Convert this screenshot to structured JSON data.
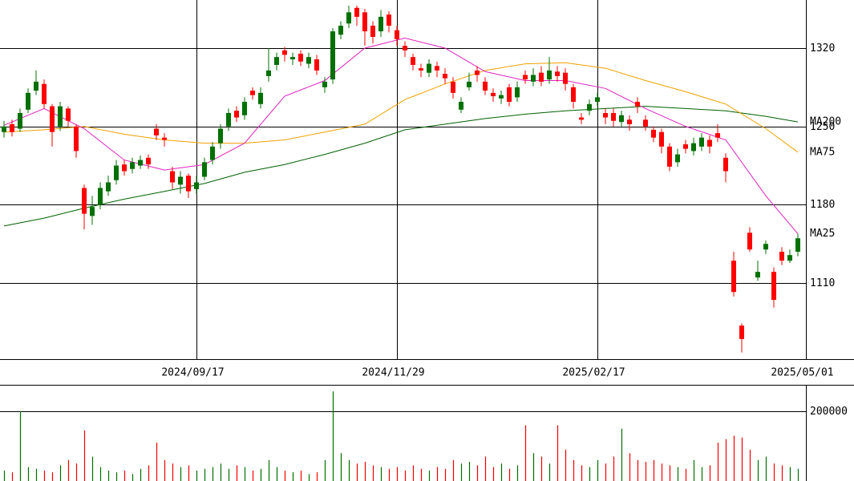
{
  "chart_data": [
    {
      "type": "candlestick",
      "x": [
        0,
        1,
        2,
        3,
        4,
        5,
        6,
        7,
        8,
        9,
        10,
        11,
        12,
        13,
        14,
        15,
        16,
        17,
        18,
        19,
        20,
        21,
        22,
        23,
        24,
        25,
        26,
        27,
        28,
        29,
        30,
        31,
        32,
        33,
        34,
        35,
        36,
        37,
        38,
        39,
        40,
        41,
        42,
        43,
        44,
        45,
        46,
        47,
        48,
        49,
        50,
        51,
        52,
        53,
        54,
        55,
        56,
        57,
        58,
        59,
        60,
        61,
        62,
        63,
        64,
        65,
        66,
        67,
        68,
        69,
        70,
        71,
        72,
        73,
        74,
        75,
        76,
        77,
        78,
        79,
        80,
        81,
        82,
        83,
        84,
        85,
        86,
        87,
        88,
        89,
        90,
        91,
        92,
        93,
        94,
        95,
        96,
        97,
        98,
        99
      ],
      "open": [
        1245,
        1252,
        1248,
        1265,
        1282,
        1288,
        1268,
        1250,
        1266,
        1250,
        1195,
        1170,
        1180,
        1192,
        1202,
        1216,
        1212,
        1215,
        1222,
        1248,
        1240,
        1210,
        1198,
        1206,
        1194,
        1205,
        1220,
        1235,
        1250,
        1264,
        1260,
        1282,
        1270,
        1295,
        1305,
        1318,
        1310,
        1315,
        1306,
        1310,
        1285,
        1292,
        1332,
        1342,
        1356,
        1352,
        1340,
        1335,
        1350,
        1336,
        1322,
        1312,
        1302,
        1298,
        1304,
        1297,
        1290,
        1265,
        1285,
        1300,
        1290,
        1280,
        1275,
        1285,
        1276,
        1296,
        1290,
        1298,
        1292,
        1299,
        1298,
        1285,
        1258,
        1264,
        1272,
        1262,
        1262,
        1254,
        1256,
        1272,
        1256,
        1247,
        1245,
        1232,
        1218,
        1234,
        1228,
        1232,
        1238,
        1244,
        1222,
        1130,
        1072,
        1155,
        1115,
        1140,
        1120,
        1138,
        1130,
        1138
      ],
      "high": [
        1255,
        1256,
        1266,
        1284,
        1300,
        1292,
        1270,
        1272,
        1268,
        1252,
        1198,
        1188,
        1200,
        1206,
        1220,
        1220,
        1222,
        1224,
        1225,
        1252,
        1244,
        1214,
        1210,
        1208,
        1206,
        1222,
        1236,
        1252,
        1266,
        1268,
        1276,
        1285,
        1285,
        1320,
        1316,
        1321,
        1316,
        1318,
        1316,
        1314,
        1294,
        1338,
        1344,
        1358,
        1358,
        1355,
        1344,
        1354,
        1353,
        1340,
        1326,
        1315,
        1306,
        1310,
        1308,
        1302,
        1294,
        1276,
        1298,
        1304,
        1294,
        1284,
        1282,
        1288,
        1290,
        1300,
        1302,
        1304,
        1312,
        1304,
        1302,
        1288,
        1262,
        1274,
        1280,
        1266,
        1266,
        1264,
        1260,
        1276,
        1260,
        1250,
        1248,
        1235,
        1230,
        1238,
        1240,
        1244,
        1242,
        1252,
        1226,
        1138,
        1074,
        1160,
        1130,
        1148,
        1124,
        1142,
        1140,
        1154
      ],
      "low": [
        1240,
        1241,
        1245,
        1262,
        1278,
        1266,
        1232,
        1246,
        1250,
        1222,
        1158,
        1162,
        1176,
        1188,
        1198,
        1206,
        1208,
        1212,
        1212,
        1238,
        1232,
        1194,
        1190,
        1186,
        1190,
        1202,
        1216,
        1230,
        1246,
        1254,
        1256,
        1274,
        1266,
        1290,
        1300,
        1308,
        1305,
        1304,
        1302,
        1296,
        1280,
        1288,
        1328,
        1338,
        1340,
        1322,
        1324,
        1330,
        1334,
        1322,
        1312,
        1300,
        1294,
        1294,
        1294,
        1288,
        1275,
        1262,
        1282,
        1290,
        1278,
        1272,
        1270,
        1268,
        1272,
        1288,
        1286,
        1286,
        1288,
        1290,
        1282,
        1266,
        1252,
        1260,
        1268,
        1252,
        1250,
        1250,
        1246,
        1262,
        1246,
        1236,
        1226,
        1210,
        1214,
        1226,
        1224,
        1228,
        1226,
        1236,
        1200,
        1098,
        1048,
        1138,
        1112,
        1136,
        1088,
        1126,
        1128,
        1134
      ],
      "close": [
        1250,
        1245,
        1262,
        1280,
        1290,
        1270,
        1245,
        1268,
        1255,
        1228,
        1172,
        1178,
        1195,
        1200,
        1215,
        1210,
        1218,
        1220,
        1216,
        1242,
        1238,
        1200,
        1205,
        1192,
        1200,
        1218,
        1232,
        1248,
        1262,
        1258,
        1272,
        1278,
        1280,
        1300,
        1312,
        1314,
        1312,
        1308,
        1312,
        1300,
        1290,
        1335,
        1340,
        1352,
        1348,
        1335,
        1330,
        1348,
        1340,
        1328,
        1318,
        1305,
        1300,
        1306,
        1300,
        1293,
        1280,
        1272,
        1290,
        1296,
        1282,
        1277,
        1278,
        1272,
        1285,
        1292,
        1296,
        1290,
        1300,
        1295,
        1288,
        1272,
        1256,
        1270,
        1276,
        1258,
        1255,
        1260,
        1252,
        1268,
        1250,
        1240,
        1232,
        1214,
        1225,
        1230,
        1235,
        1240,
        1232,
        1240,
        1210,
        1102,
        1060,
        1140,
        1120,
        1145,
        1095,
        1130,
        1135,
        1150
      ],
      "up_color": "#007000",
      "down_color": "#ff0000",
      "xlim": [
        -0.5,
        100
      ],
      "xticks": [
        {
          "value": 24,
          "label": "2024/09/17"
        },
        {
          "value": 49,
          "label": "2024/11/29"
        },
        {
          "value": 74,
          "label": "2025/02/17"
        },
        {
          "value": 100,
          "label": "2025/05/01"
        }
      ],
      "ylim": [
        1042,
        1363
      ],
      "yticks": [
        1110,
        1180,
        1250,
        1320
      ],
      "grid": true,
      "series": [
        {
          "name": "MA200",
          "color": "#006000",
          "x": [
            0,
            5,
            10,
            15,
            20,
            25,
            30,
            35,
            40,
            45,
            50,
            55,
            60,
            65,
            70,
            75,
            80,
            85,
            90,
            95,
            99
          ],
          "values": [
            1161,
            1168,
            1177,
            1185,
            1192,
            1199,
            1209,
            1216,
            1225,
            1235,
            1247,
            1252,
            1257,
            1261,
            1264,
            1266,
            1268,
            1266,
            1264,
            1259,
            1254
          ]
        },
        {
          "name": "MA75",
          "color": "#f0a000",
          "x": [
            0,
            5,
            10,
            15,
            20,
            25,
            30,
            35,
            40,
            45,
            50,
            55,
            60,
            65,
            70,
            75,
            80,
            85,
            90,
            95,
            99
          ],
          "values": [
            1245,
            1247,
            1250,
            1243,
            1238,
            1235,
            1235,
            1238,
            1245,
            1252,
            1274,
            1288,
            1300,
            1306,
            1307,
            1302,
            1291,
            1281,
            1270,
            1248,
            1227
          ]
        },
        {
          "name": "MA25",
          "color": "#e020c0",
          "x": [
            0,
            5,
            10,
            15,
            20,
            25,
            30,
            35,
            40,
            45,
            50,
            55,
            60,
            65,
            70,
            75,
            80,
            85,
            90,
            95,
            99
          ],
          "values": [
            1251,
            1266,
            1248,
            1220,
            1211,
            1216,
            1235,
            1277,
            1291,
            1320,
            1329,
            1320,
            1299,
            1291,
            1291,
            1284,
            1266,
            1250,
            1238,
            1188,
            1154
          ]
        }
      ]
    },
    {
      "type": "bar",
      "values": [
        30000,
        25000,
        200000,
        40000,
        35000,
        30000,
        25000,
        45000,
        60000,
        50000,
        145000,
        70000,
        40000,
        30000,
        25000,
        30000,
        20000,
        35000,
        45000,
        110000,
        60000,
        50000,
        40000,
        45000,
        30000,
        35000,
        40000,
        50000,
        35000,
        45000,
        40000,
        30000,
        35000,
        60000,
        40000,
        30000,
        25000,
        30000,
        20000,
        25000,
        60000,
        257000,
        80000,
        60000,
        50000,
        55000,
        45000,
        40000,
        35000,
        40000,
        30000,
        45000,
        35000,
        30000,
        40000,
        35000,
        60000,
        50000,
        55000,
        45000,
        70000,
        40000,
        50000,
        35000,
        45000,
        160000,
        80000,
        70000,
        50000,
        160000,
        90000,
        60000,
        45000,
        40000,
        60000,
        50000,
        70000,
        150000,
        80000,
        60000,
        55000,
        60000,
        50000,
        45000,
        40000,
        35000,
        60000,
        40000,
        45000,
        110000,
        120000,
        130000,
        125000,
        90000,
        60000,
        70000,
        50000,
        45000,
        40000,
        35000
      ],
      "ylim": [
        0,
        276000
      ],
      "yticks": [
        200000
      ]
    }
  ]
}
